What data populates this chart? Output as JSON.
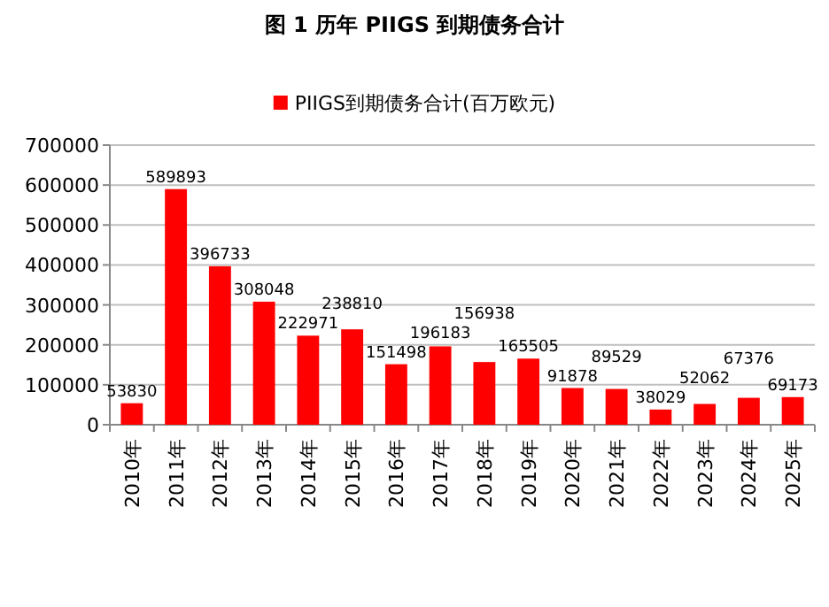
{
  "chart_data": {
    "type": "bar",
    "title": "图 1 历年 PIIGS 到期债务合计",
    "categories": [
      "2010年",
      "2011年",
      "2012年",
      "2013年",
      "2014年",
      "2015年",
      "2016年",
      "2017年",
      "2018年",
      "2019年",
      "2020年",
      "2021年",
      "2022年",
      "2023年",
      "2024年",
      "2025年"
    ],
    "series": [
      {
        "name": "PIIGS到期债务合计(百万欧元)",
        "color": "#ff0000",
        "values": [
          53830,
          589893,
          396733,
          308048,
          222971,
          238810,
          151498,
          196183,
          156938,
          165505,
          91878,
          89529,
          38029,
          52062,
          67376,
          69173
        ]
      }
    ],
    "ylim": [
      0,
      700000
    ],
    "yticks": [
      0,
      100000,
      200000,
      300000,
      400000,
      500000,
      600000,
      700000
    ],
    "grid": "y",
    "legend": "top",
    "data_labels": true
  }
}
